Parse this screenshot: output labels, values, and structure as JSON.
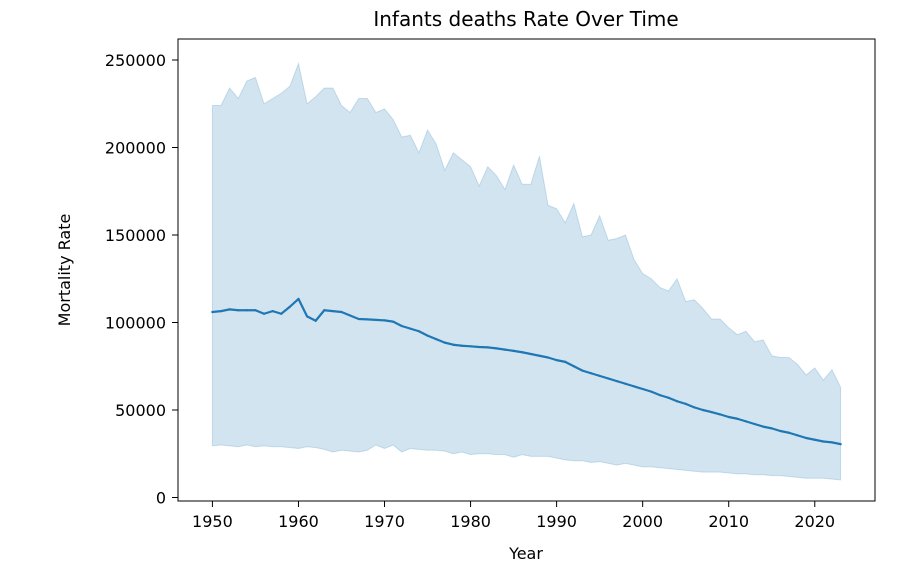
{
  "chart_data": {
    "type": "line",
    "title": "Infants deaths Rate Over Time",
    "xlabel": "Year",
    "ylabel": "Mortality Rate",
    "xlim": [
      1946,
      2027
    ],
    "ylim": [
      -2000,
      262000
    ],
    "xticks": [
      1950,
      1960,
      1970,
      1980,
      1990,
      2000,
      2010,
      2020
    ],
    "yticks": [
      0,
      50000,
      100000,
      150000,
      200000,
      250000
    ],
    "grid": false,
    "line_color": "#1f77b4",
    "band_color": "#1f77b4",
    "band_opacity": 0.2,
    "x": [
      1950,
      1951,
      1952,
      1953,
      1954,
      1955,
      1956,
      1957,
      1958,
      1959,
      1960,
      1961,
      1962,
      1963,
      1964,
      1965,
      1966,
      1967,
      1968,
      1969,
      1970,
      1971,
      1972,
      1973,
      1974,
      1975,
      1976,
      1977,
      1978,
      1979,
      1980,
      1981,
      1982,
      1983,
      1984,
      1985,
      1986,
      1987,
      1988,
      1989,
      1990,
      1991,
      1992,
      1993,
      1994,
      1995,
      1996,
      1997,
      1998,
      1999,
      2000,
      2001,
      2002,
      2003,
      2004,
      2005,
      2006,
      2007,
      2008,
      2009,
      2010,
      2011,
      2012,
      2013,
      2014,
      2015,
      2016,
      2017,
      2018,
      2019,
      2020,
      2021,
      2022,
      2023
    ],
    "series": [
      {
        "mean": [
          106000,
          106500,
          107500,
          107000,
          107000,
          107000,
          105000,
          106500,
          105000,
          109000,
          113500,
          103500,
          101000,
          107000,
          106500,
          106000,
          104000,
          102000,
          101800,
          101500,
          101200,
          100500,
          98000,
          96500,
          95000,
          92500,
          90500,
          88500,
          87300,
          86700,
          86400,
          86000,
          85800,
          85200,
          84500,
          83800,
          83000,
          82000,
          81000,
          80000,
          78500,
          77500,
          75000,
          72500,
          71000,
          69500,
          68000,
          66500,
          65000,
          63500,
          62000,
          60500,
          58500,
          57000,
          55000,
          53500,
          51500,
          50000,
          48800,
          47500,
          46000,
          45000,
          43500,
          42000,
          40500,
          39500,
          38000,
          37000,
          35500,
          34000,
          33000,
          32000,
          31500,
          30500
        ],
        "upper": [
          224000,
          224000,
          234000,
          228000,
          238000,
          240000,
          225000,
          228000,
          231000,
          235000,
          248000,
          225000,
          229000,
          234000,
          234000,
          224000,
          220000,
          228000,
          228000,
          220000,
          222000,
          216000,
          206000,
          207000,
          197000,
          210000,
          202000,
          187000,
          197000,
          193000,
          189000,
          178000,
          189000,
          184000,
          176000,
          190000,
          179000,
          179000,
          195000,
          167000,
          165000,
          157000,
          168000,
          149000,
          150000,
          161000,
          147000,
          148000,
          150000,
          136000,
          128000,
          125000,
          120000,
          118000,
          125000,
          112000,
          113000,
          108000,
          102000,
          102000,
          97000,
          93000,
          95000,
          89000,
          90000,
          81000,
          80000,
          80000,
          76000,
          70000,
          74000,
          67000,
          73000,
          63000
        ],
        "lower": [
          29500,
          30000,
          29500,
          29000,
          30000,
          29000,
          29500,
          29000,
          29000,
          28500,
          28000,
          29000,
          28500,
          27500,
          26000,
          27000,
          26500,
          26000,
          27000,
          30000,
          28000,
          30000,
          26000,
          28000,
          27500,
          27000,
          27000,
          26500,
          25000,
          26000,
          24500,
          25000,
          25000,
          24500,
          24500,
          23000,
          24500,
          23500,
          23500,
          23500,
          22500,
          21500,
          21000,
          21000,
          20000,
          20500,
          19500,
          18500,
          19500,
          18500,
          17500,
          17500,
          17000,
          16500,
          16000,
          15500,
          15000,
          14500,
          14500,
          14500,
          14000,
          13500,
          13500,
          13000,
          13000,
          12500,
          12500,
          12000,
          11500,
          11000,
          11000,
          11000,
          10500,
          10000
        ]
      }
    ]
  }
}
